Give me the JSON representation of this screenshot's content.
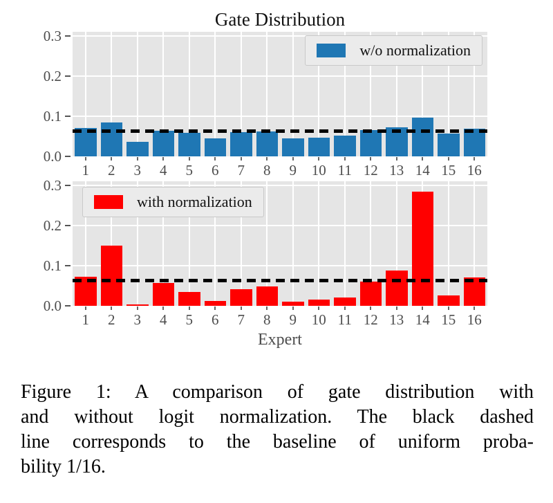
{
  "title": "Gate Distribution",
  "xlabel": "Expert",
  "colors": {
    "blue": "#1f77b4",
    "red": "#ff0000",
    "plot_bg": "#e5e5e5",
    "grid": "#ffffff",
    "baseline": "#000000",
    "legend_bg": "#ebebeb",
    "tick_label": "#4d4d4d"
  },
  "chart_data": [
    {
      "type": "bar",
      "title": "Gate Distribution",
      "categories": [
        "1",
        "2",
        "3",
        "4",
        "5",
        "6",
        "7",
        "8",
        "9",
        "10",
        "11",
        "12",
        "13",
        "14",
        "15",
        "16"
      ],
      "series": [
        {
          "name": "w/o normalization",
          "color": "#1f77b4",
          "values": [
            0.07,
            0.084,
            0.036,
            0.063,
            0.058,
            0.044,
            0.061,
            0.062,
            0.045,
            0.047,
            0.051,
            0.066,
            0.073,
            0.097,
            0.057,
            0.069
          ]
        }
      ],
      "baseline": {
        "value": 0.0625,
        "label": "uniform probability 1/16",
        "style": "black dashed"
      },
      "xlabel": "Expert",
      "ylabel": "",
      "ylim": [
        0,
        0.31
      ],
      "yticks": [
        "0.0",
        "0.1",
        "0.2",
        "0.3"
      ],
      "grid": true,
      "legend_position": "top-right"
    },
    {
      "type": "bar",
      "title": "",
      "categories": [
        "1",
        "2",
        "3",
        "4",
        "5",
        "6",
        "7",
        "8",
        "9",
        "10",
        "11",
        "12",
        "13",
        "14",
        "15",
        "16"
      ],
      "series": [
        {
          "name": "with normalization",
          "color": "#ff0000",
          "values": [
            0.072,
            0.15,
            0.004,
            0.056,
            0.034,
            0.012,
            0.042,
            0.048,
            0.01,
            0.015,
            0.02,
            0.06,
            0.088,
            0.285,
            0.026,
            0.07
          ]
        }
      ],
      "baseline": {
        "value": 0.0625,
        "label": "uniform probability 1/16",
        "style": "black dashed"
      },
      "xlabel": "Expert",
      "ylabel": "",
      "ylim": [
        0,
        0.31
      ],
      "yticks": [
        "0.0",
        "0.1",
        "0.2",
        "0.3"
      ],
      "grid": true,
      "legend_position": "top-left"
    }
  ],
  "caption": {
    "lines": [
      "Figure 1: A comparison of gate distribution with",
      "and without logit normalization. The black dashed",
      "line corresponds to the baseline of uniform proba-",
      "bility 1/16."
    ]
  }
}
